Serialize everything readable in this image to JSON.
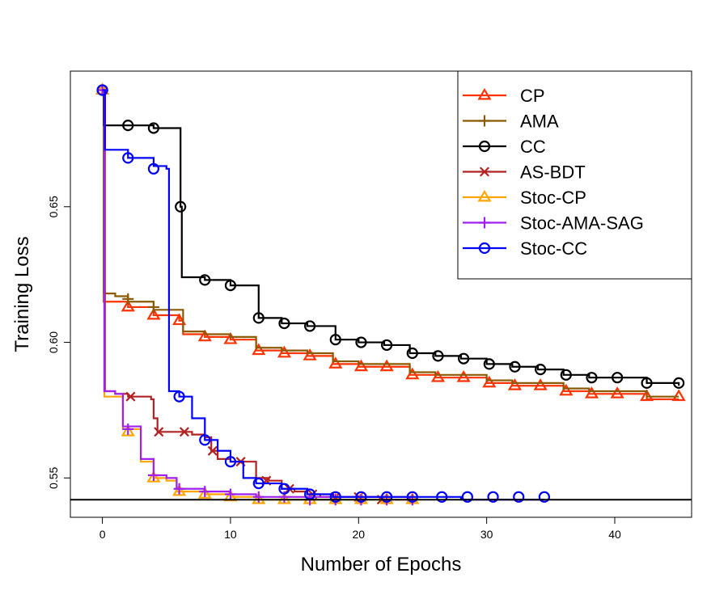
{
  "chart_data": {
    "type": "line",
    "title": "",
    "xlabel": "Number of Epochs",
    "ylabel": "Training Loss",
    "xlim": [
      -2.5,
      46
    ],
    "ylim": [
      0.5355,
      0.7
    ],
    "xticks": [
      0,
      10,
      20,
      30,
      40
    ],
    "yticks": [
      0.55,
      0.6,
      0.65
    ],
    "ytick_labels": [
      "0.55",
      "0.60",
      "0.65"
    ],
    "reference_line": 0.542,
    "grid": false,
    "legend_position": "top-right",
    "series": [
      {
        "name": "CP",
        "color": "#ff3300",
        "marker": "triangle",
        "steps": [
          [
            0,
            0.693
          ],
          [
            0.1,
            0.615
          ],
          [
            2,
            0.613
          ],
          [
            4,
            0.61
          ],
          [
            6,
            0.608
          ],
          [
            6.3,
            0.603
          ],
          [
            8,
            0.602
          ],
          [
            10,
            0.601
          ],
          [
            12,
            0.597
          ],
          [
            14,
            0.596
          ],
          [
            16,
            0.595
          ],
          [
            18,
            0.592
          ],
          [
            20,
            0.591
          ],
          [
            22,
            0.591
          ],
          [
            24,
            0.588
          ],
          [
            26,
            0.587
          ],
          [
            28,
            0.587
          ],
          [
            30,
            0.585
          ],
          [
            32,
            0.584
          ],
          [
            34,
            0.584
          ],
          [
            36,
            0.582
          ],
          [
            38,
            0.581
          ],
          [
            40,
            0.581
          ],
          [
            42.5,
            0.579
          ],
          [
            45,
            0.579
          ]
        ],
        "markers": [
          [
            0,
            0.693
          ],
          [
            2,
            0.613
          ],
          [
            4,
            0.61
          ],
          [
            6,
            0.608
          ],
          [
            8,
            0.602
          ],
          [
            10,
            0.601
          ],
          [
            12.2,
            0.597
          ],
          [
            14.2,
            0.596
          ],
          [
            16.2,
            0.595
          ],
          [
            18.2,
            0.592
          ],
          [
            20.2,
            0.591
          ],
          [
            22.2,
            0.591
          ],
          [
            24.2,
            0.588
          ],
          [
            26.2,
            0.587
          ],
          [
            28.2,
            0.587
          ],
          [
            30.2,
            0.585
          ],
          [
            32.2,
            0.584
          ],
          [
            34.2,
            0.584
          ],
          [
            36.2,
            0.582
          ],
          [
            38.2,
            0.581
          ],
          [
            40.2,
            0.581
          ],
          [
            42.5,
            0.58
          ],
          [
            45,
            0.58
          ]
        ]
      },
      {
        "name": "AMA",
        "color": "#8b5a00",
        "marker": "plus",
        "steps": [
          [
            0,
            0.693
          ],
          [
            0.1,
            0.618
          ],
          [
            1,
            0.617
          ],
          [
            2,
            0.615
          ],
          [
            4,
            0.612
          ],
          [
            6,
            0.612
          ],
          [
            6.3,
            0.604
          ],
          [
            8,
            0.603
          ],
          [
            10,
            0.602
          ],
          [
            12,
            0.598
          ],
          [
            14,
            0.597
          ],
          [
            16,
            0.596
          ],
          [
            18,
            0.593
          ],
          [
            20,
            0.592
          ],
          [
            22,
            0.592
          ],
          [
            24,
            0.589
          ],
          [
            26,
            0.588
          ],
          [
            28,
            0.588
          ],
          [
            30,
            0.586
          ],
          [
            32,
            0.585
          ],
          [
            34,
            0.585
          ],
          [
            36,
            0.583
          ],
          [
            38,
            0.582
          ],
          [
            40,
            0.582
          ],
          [
            42.5,
            0.58
          ],
          [
            45,
            0.58
          ]
        ],
        "markers": [
          [
            0,
            0.693
          ],
          [
            2,
            0.616
          ],
          [
            4,
            0.613
          ]
        ]
      },
      {
        "name": "CC",
        "color": "#000000",
        "marker": "circle",
        "steps": [
          [
            0,
            0.693
          ],
          [
            0.1,
            0.68
          ],
          [
            2,
            0.68
          ],
          [
            4,
            0.679
          ],
          [
            6,
            0.679
          ],
          [
            6.1,
            0.65
          ],
          [
            6.2,
            0.624
          ],
          [
            8,
            0.623
          ],
          [
            10,
            0.621
          ],
          [
            12,
            0.621
          ],
          [
            12.2,
            0.609
          ],
          [
            14,
            0.607
          ],
          [
            16,
            0.606
          ],
          [
            18,
            0.606
          ],
          [
            18.2,
            0.601
          ],
          [
            20,
            0.6
          ],
          [
            22,
            0.599
          ],
          [
            24,
            0.596
          ],
          [
            26,
            0.595
          ],
          [
            28,
            0.594
          ],
          [
            30,
            0.592
          ],
          [
            32,
            0.591
          ],
          [
            34,
            0.59
          ],
          [
            36,
            0.588
          ],
          [
            38,
            0.587
          ],
          [
            40,
            0.587
          ],
          [
            42.5,
            0.585
          ],
          [
            45,
            0.584
          ]
        ],
        "markers": [
          [
            0,
            0.693
          ],
          [
            2,
            0.68
          ],
          [
            4,
            0.679
          ],
          [
            6.1,
            0.65
          ],
          [
            8,
            0.623
          ],
          [
            10,
            0.621
          ],
          [
            12.2,
            0.609
          ],
          [
            14.2,
            0.607
          ],
          [
            16.2,
            0.606
          ],
          [
            18.2,
            0.601
          ],
          [
            20.2,
            0.6
          ],
          [
            22.2,
            0.599
          ],
          [
            24.2,
            0.596
          ],
          [
            26.2,
            0.595
          ],
          [
            28.2,
            0.594
          ],
          [
            30.2,
            0.592
          ],
          [
            32.2,
            0.591
          ],
          [
            34.2,
            0.59
          ],
          [
            36.2,
            0.588
          ],
          [
            38.2,
            0.587
          ],
          [
            40.2,
            0.587
          ],
          [
            42.5,
            0.585
          ],
          [
            45,
            0.585
          ]
        ]
      },
      {
        "name": "AS-BDT",
        "color": "#b22222",
        "marker": "cross",
        "steps": [
          [
            0,
            0.693
          ],
          [
            0.2,
            0.582
          ],
          [
            1,
            0.581
          ],
          [
            2,
            0.58
          ],
          [
            3,
            0.58
          ],
          [
            3.8,
            0.579
          ],
          [
            4,
            0.572
          ],
          [
            4.3,
            0.567
          ],
          [
            6,
            0.567
          ],
          [
            7,
            0.566
          ],
          [
            8,
            0.565
          ],
          [
            8.5,
            0.56
          ],
          [
            9,
            0.557
          ],
          [
            10,
            0.556
          ],
          [
            11,
            0.556
          ],
          [
            12,
            0.55
          ],
          [
            13,
            0.549
          ],
          [
            14,
            0.546
          ],
          [
            15,
            0.545
          ],
          [
            16,
            0.544
          ],
          [
            17,
            0.543
          ],
          [
            18,
            0.543
          ],
          [
            20,
            0.543
          ],
          [
            22,
            0.542
          ],
          [
            24,
            0.542
          ]
        ],
        "markers": [
          [
            2.2,
            0.58
          ],
          [
            4.4,
            0.567
          ],
          [
            6.4,
            0.567
          ],
          [
            8.6,
            0.56
          ],
          [
            10.8,
            0.556
          ],
          [
            12.8,
            0.549
          ],
          [
            14.6,
            0.546
          ],
          [
            16.4,
            0.544
          ],
          [
            18.2,
            0.543
          ],
          [
            20,
            0.543
          ],
          [
            21.8,
            0.542
          ]
        ]
      },
      {
        "name": "Stoc-CP",
        "color": "#ffa500",
        "marker": "triangle",
        "steps": [
          [
            0,
            0.693
          ],
          [
            0.15,
            0.58
          ],
          [
            1,
            0.58
          ],
          [
            1.6,
            0.568
          ],
          [
            3,
            0.567
          ],
          [
            3,
            0.556
          ],
          [
            4,
            0.55
          ],
          [
            5,
            0.549
          ],
          [
            5.8,
            0.545
          ],
          [
            8,
            0.544
          ],
          [
            10,
            0.543
          ],
          [
            12,
            0.542
          ],
          [
            24,
            0.542
          ]
        ],
        "markers": [
          [
            0,
            0.693
          ],
          [
            2,
            0.567
          ],
          [
            4,
            0.55
          ],
          [
            6,
            0.545
          ],
          [
            8,
            0.544
          ],
          [
            10,
            0.543
          ],
          [
            12.2,
            0.542
          ],
          [
            14.2,
            0.542
          ],
          [
            16.2,
            0.542
          ],
          [
            18.2,
            0.542
          ],
          [
            20.2,
            0.542
          ],
          [
            22.2,
            0.542
          ],
          [
            24.2,
            0.542
          ]
        ]
      },
      {
        "name": "Stoc-AMA-SAG",
        "color": "#a020f0",
        "marker": "plus",
        "steps": [
          [
            0,
            0.693
          ],
          [
            0.15,
            0.582
          ],
          [
            1,
            0.581
          ],
          [
            1.6,
            0.569
          ],
          [
            3,
            0.568
          ],
          [
            3,
            0.557
          ],
          [
            4,
            0.551
          ],
          [
            5,
            0.55
          ],
          [
            5.8,
            0.546
          ],
          [
            8,
            0.545
          ],
          [
            10,
            0.544
          ],
          [
            12,
            0.543
          ],
          [
            24,
            0.542
          ]
        ],
        "markers": [
          [
            0,
            0.693
          ],
          [
            2,
            0.568
          ],
          [
            4,
            0.551
          ],
          [
            6,
            0.546
          ],
          [
            8,
            0.545
          ],
          [
            10,
            0.544
          ],
          [
            12.2,
            0.543
          ],
          [
            14.2,
            0.543
          ],
          [
            16.2,
            0.542
          ],
          [
            18.2,
            0.542
          ],
          [
            20.2,
            0.542
          ],
          [
            22.2,
            0.542
          ],
          [
            24.2,
            0.542
          ]
        ]
      },
      {
        "name": "Stoc-CC",
        "color": "#0000ff",
        "marker": "circle",
        "steps": [
          [
            0,
            0.693
          ],
          [
            0.2,
            0.671
          ],
          [
            2,
            0.668
          ],
          [
            4,
            0.665
          ],
          [
            5,
            0.664
          ],
          [
            5.2,
            0.582
          ],
          [
            6,
            0.58
          ],
          [
            7,
            0.572
          ],
          [
            8,
            0.564
          ],
          [
            9,
            0.56
          ],
          [
            10,
            0.556
          ],
          [
            11,
            0.55
          ],
          [
            12,
            0.548
          ],
          [
            14,
            0.546
          ],
          [
            16,
            0.544
          ],
          [
            18,
            0.543
          ],
          [
            20,
            0.543
          ],
          [
            22,
            0.543
          ],
          [
            24,
            0.543
          ],
          [
            26,
            0.543
          ],
          [
            28,
            0.542
          ],
          [
            30,
            0.542
          ],
          [
            32,
            0.542
          ],
          [
            34.5,
            0.542
          ]
        ],
        "markers": [
          [
            0,
            0.693
          ],
          [
            2,
            0.668
          ],
          [
            4,
            0.664
          ],
          [
            6,
            0.58
          ],
          [
            8,
            0.564
          ],
          [
            10,
            0.556
          ],
          [
            12.2,
            0.548
          ],
          [
            14.2,
            0.546
          ],
          [
            16.2,
            0.544
          ],
          [
            18.2,
            0.543
          ],
          [
            20.2,
            0.543
          ],
          [
            22.2,
            0.543
          ],
          [
            24.2,
            0.543
          ],
          [
            26.5,
            0.543
          ],
          [
            28.5,
            0.543
          ],
          [
            30.5,
            0.543
          ],
          [
            32.5,
            0.543
          ],
          [
            34.5,
            0.543
          ]
        ]
      }
    ]
  }
}
